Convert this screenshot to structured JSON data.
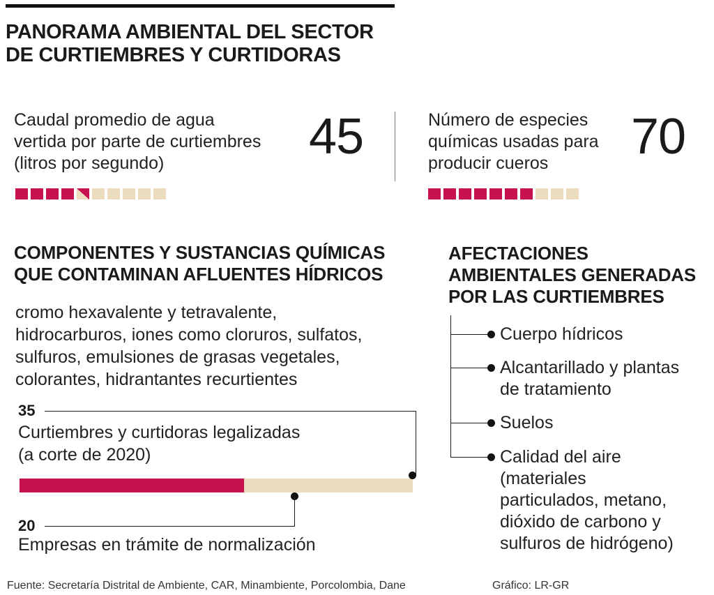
{
  "title": "PANORAMA AMBIENTAL DEL SECTOR\nDE CURTIEMBRES Y CURTIDORAS",
  "stats": [
    {
      "label": "Caudal promedio de agua\nvertida por parte de curtiembres\n(litros por segundo)",
      "value": "45",
      "filled_squares": 4.5,
      "total_squares": 10
    },
    {
      "label": "Número de especies\nquímicas usadas para\nproducir cueros",
      "value": "70",
      "filled_squares": 7,
      "total_squares": 10
    }
  ],
  "components": {
    "heading": "COMPONENTES Y SUSTANCIAS QUÍMICAS\nQUE CONTAMINAN AFLUENTES HÍDRICOS",
    "text": "cromo hexavalente y tetravalente,\nhidrocarburos, iones como cloruros, sulfatos,\nsulfuros, emulsiones de grasas vegetales,\ncolorantes, hidrantantes recurtientes"
  },
  "companies": {
    "legal_count": "35",
    "legal_label": "Curtiembres y curtidoras legalizadas\n(a corte de 2020)",
    "pending_count": "20",
    "pending_label": "Empresas en trámite de normalización",
    "legal_value": 35,
    "pending_value": 20
  },
  "afectaciones": {
    "heading": "AFECTACIONES\nAMBIENTALES GENERADAS\nPOR LAS CURTIEMBRES",
    "items": [
      "Cuerpo hídricos",
      "Alcantarillado y plantas\nde tratamiento",
      "Suelos",
      "Calidad del aire\n(materiales\nparticulados, metano,\ndióxido de carbono y\nsulfuros de hidrógeno)"
    ]
  },
  "source": "Fuente: Secretaría Distrital de Ambiente, CAR, Minambiente, Porcolombia, Dane",
  "credit": "Gráfico: LR-GR",
  "colors": {
    "magenta": "#c8124f",
    "beige": "#ecdcbd"
  }
}
